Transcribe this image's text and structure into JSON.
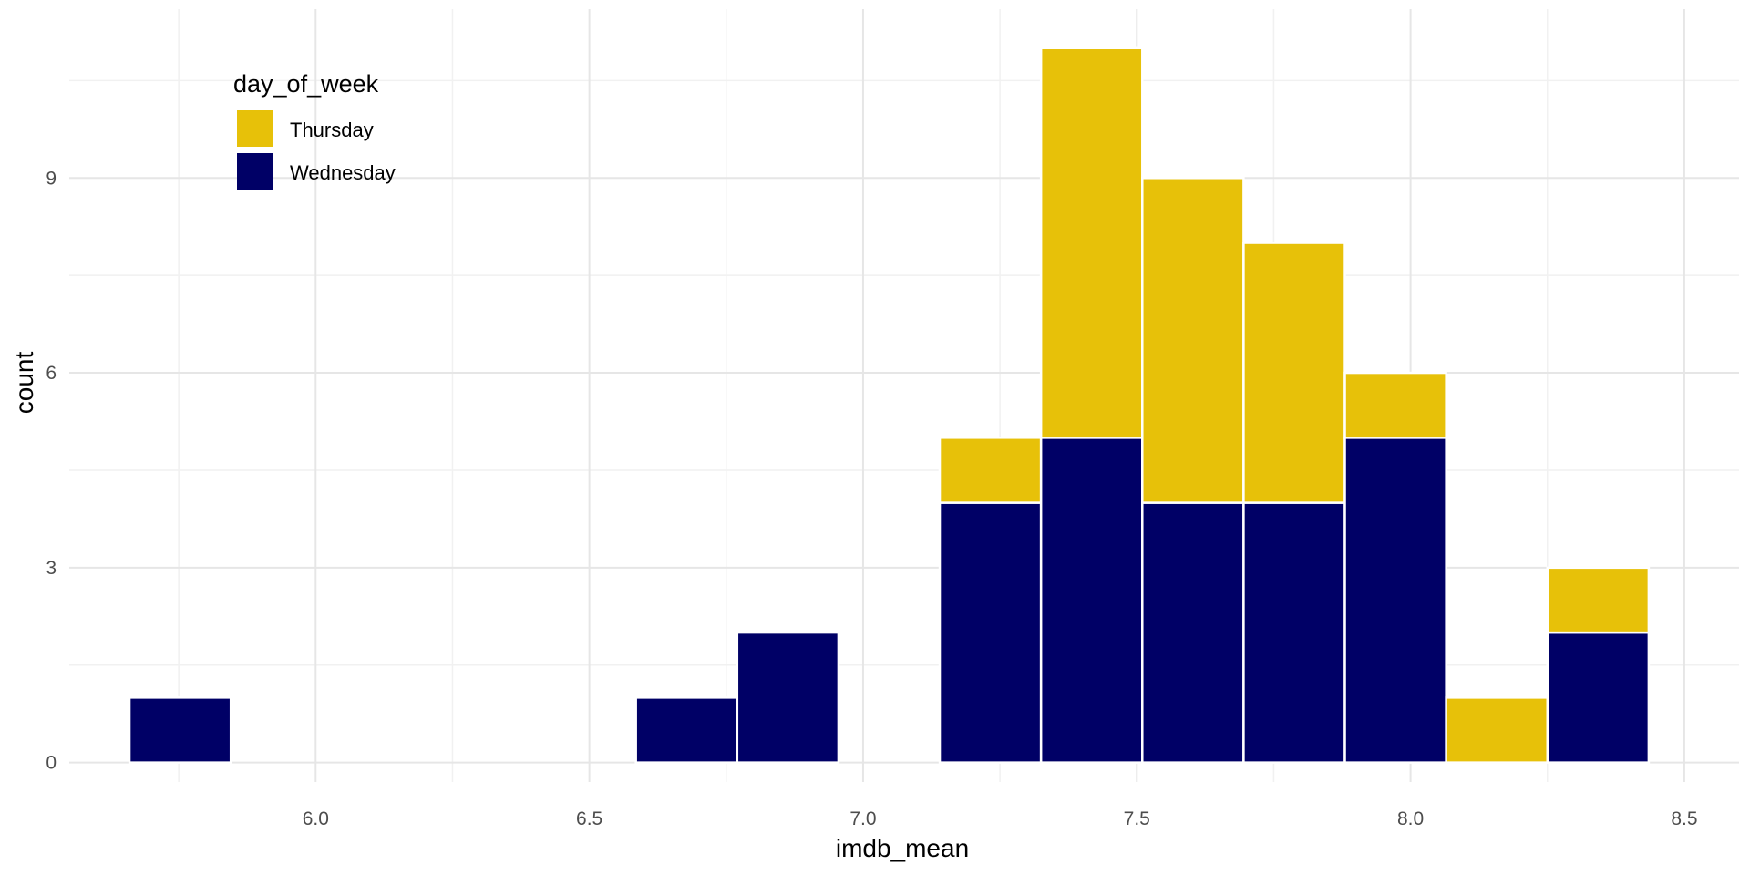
{
  "chart_data": {
    "type": "bar",
    "subtype": "stacked-histogram",
    "xlabel": "imdb_mean",
    "ylabel": "count",
    "xlim": [
      5.55,
      8.6
    ],
    "ylim": [
      -0.3,
      11.6
    ],
    "x_ticks": [
      6.0,
      6.5,
      7.0,
      7.5,
      8.0,
      8.5
    ],
    "x_tick_labels": [
      "6.0",
      "6.5",
      "7.0",
      "7.5",
      "8.0",
      "8.5"
    ],
    "y_ticks": [
      0,
      3,
      6,
      9
    ],
    "y_tick_labels": [
      "0",
      "3",
      "6",
      "9"
    ],
    "grid": true,
    "bin_width": 0.185,
    "bins": [
      [
        5.66,
        5.845
      ],
      [
        5.845,
        6.03
      ],
      [
        6.03,
        6.215
      ],
      [
        6.215,
        6.4
      ],
      [
        6.4,
        6.585
      ],
      [
        6.585,
        6.77
      ],
      [
        6.77,
        6.955
      ],
      [
        6.955,
        7.14
      ],
      [
        7.14,
        7.325
      ],
      [
        7.325,
        7.51
      ],
      [
        7.51,
        7.695
      ],
      [
        7.695,
        7.88
      ],
      [
        7.88,
        8.065
      ],
      [
        8.065,
        8.25
      ],
      [
        8.25,
        8.435
      ]
    ],
    "series": [
      {
        "name": "Wednesday",
        "color": "#000066",
        "values": [
          1,
          0,
          0,
          0,
          0,
          1,
          2,
          0,
          4,
          5,
          4,
          4,
          5,
          0,
          2
        ]
      },
      {
        "name": "Thursday",
        "color": "#E7C109",
        "values": [
          0,
          0,
          0,
          0,
          0,
          0,
          0,
          0,
          1,
          6,
          5,
          4,
          1,
          1,
          1
        ]
      }
    ],
    "legend": {
      "title": "day_of_week",
      "position": "top-left",
      "entries": [
        {
          "label": "Thursday",
          "color": "#E7C109"
        },
        {
          "label": "Wednesday",
          "color": "#000066"
        }
      ]
    }
  }
}
